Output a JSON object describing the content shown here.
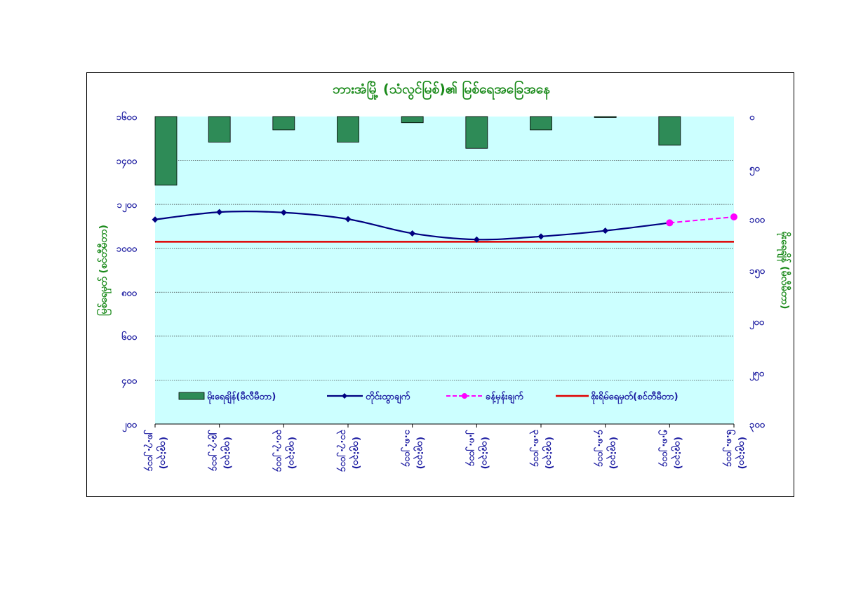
{
  "colors": {
    "plot_bg": "#ccffff",
    "bar": "#2e8b57",
    "line": "#000080",
    "forecast": "#ff00ff",
    "danger": "#e00000",
    "text_green": "#1a8a1a",
    "text_blue": "#1a1aa0"
  },
  "chart_data": {
    "type": "bar+line",
    "title": "ဘားအံမြို့ (သံလွင်မြစ်)၏ မြစ်ရေအခြေအနေ",
    "ylabel_left": "မြစ်ရေမှတ် (စင်တီမီတာ)",
    "ylabel_right": "မိုးရေချိန် (မီလီမီတာ)",
    "ylim_left": [
      200,
      1600
    ],
    "yticks_left": [
      "၂၀၀",
      "၄၀၀",
      "၆၀၀",
      "၈၀၀",
      "၁၀၀၀",
      "၁၂၀၀",
      "၁၄၀၀",
      "၁၆၀၀"
    ],
    "ylim_right_reversed": [
      0,
      300
    ],
    "yticks_right": [
      "၀",
      "၅၀",
      "၁၀၀",
      "၁၅၀",
      "၂၀၀",
      "၂၅၀",
      "၃၀၀"
    ],
    "categories": [
      [
        "၂၈.၇.၂၀၁၄",
        "(၀၉:၃၀)"
      ],
      [
        "၂၉.၇.၂၀၁၄",
        "(၀၉:၃၀)"
      ],
      [
        "၃၀.၇.၂၀၁၄",
        "(၀၉:၃၀)"
      ],
      [
        "၃၁.၇.၂၀၁၄",
        "(၀၉:၃၀)"
      ],
      [
        "၁.၈.၂၀၁၄",
        "(၀၉:၃၀)"
      ],
      [
        "၂.၈.၂၀၁၄",
        "(၀၉:၃၀)"
      ],
      [
        "၃.၈.၂၀၁၄",
        "(၀၉:၃၀)"
      ],
      [
        "၄.၈.၂၀၁၄",
        "(၀၉:၃၀)"
      ],
      [
        "၅.၈.၂၀၁၄",
        "(၀၉:၃၀)"
      ],
      [
        "၆.၈.၂၀၁၄",
        "(၀၉:၃၀)"
      ]
    ],
    "series": [
      {
        "name": "မိုးရေချိန်(မီလီမီတာ)",
        "kind": "bar",
        "axis": "right",
        "values": [
          67,
          25,
          13,
          25,
          6,
          31,
          13,
          1,
          28,
          null
        ]
      },
      {
        "name": "တိုင်းထွာချက်",
        "kind": "line",
        "axis": "left",
        "values": [
          1131,
          1165,
          1163,
          1133,
          1068,
          1040,
          1054,
          1080,
          1116,
          null
        ]
      },
      {
        "name": "ခန့်မှန်းချက်",
        "kind": "dashed-line",
        "axis": "left",
        "values": [
          null,
          null,
          null,
          null,
          null,
          null,
          null,
          null,
          1116,
          1143
        ]
      },
      {
        "name": "စိုးရိမ်ရေမှတ်(စင်တီမီတာ)",
        "kind": "hline",
        "axis": "left",
        "value": 1030
      }
    ],
    "legend": "inside-bottom",
    "grid": "horizontal dotted"
  }
}
